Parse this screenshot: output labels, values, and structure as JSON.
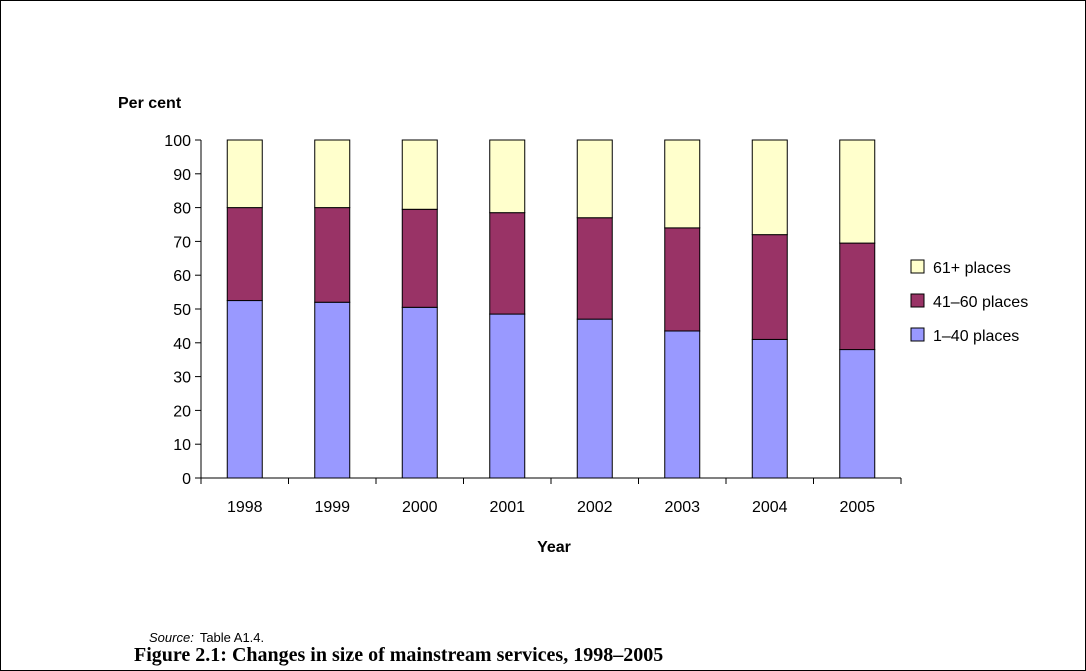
{
  "chart_data": {
    "type": "bar",
    "stacked": true,
    "ylabel": "Per cent",
    "xlabel": "Year",
    "ylim": [
      0,
      100
    ],
    "yticks": [
      0,
      10,
      20,
      30,
      40,
      50,
      60,
      70,
      80,
      90,
      100
    ],
    "categories": [
      "1998",
      "1999",
      "2000",
      "2001",
      "2002",
      "2003",
      "2004",
      "2005"
    ],
    "series": [
      {
        "name": "1–40 places",
        "color": "#9999ff",
        "values": [
          52.5,
          52,
          50.5,
          48.5,
          47,
          43.5,
          41,
          38
        ]
      },
      {
        "name": "41–60 places",
        "color": "#993366",
        "values": [
          27.5,
          28,
          29,
          30,
          30,
          30.5,
          31,
          31.5
        ]
      },
      {
        "name": "61+ places",
        "color": "#ffffcc",
        "values": [
          20,
          20,
          20.5,
          21.5,
          23,
          26,
          28,
          30.5
        ]
      }
    ],
    "legend": [
      "61+ places",
      "41–60 places",
      "1–40 places"
    ],
    "legend_position": "right",
    "grid": false
  },
  "source": {
    "lead": "Source:",
    "text": "Table A1.4."
  },
  "caption": "Figure 2.1: Changes in size of mainstream services, 1998–2005"
}
